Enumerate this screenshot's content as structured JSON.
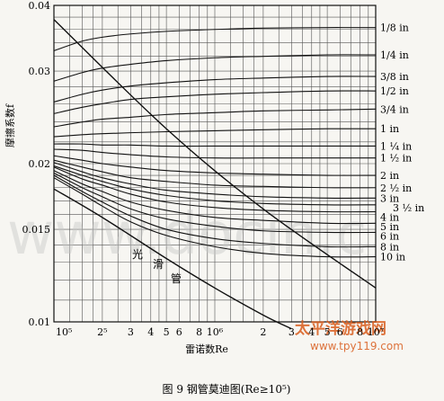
{
  "chart_data": {
    "type": "line",
    "title": "",
    "ylabel": "摩擦系数f",
    "xlabel": "雷诺数Re",
    "caption": "图 9   钢管莫迪图(Re≥10⁵)",
    "x_scale": "log",
    "y_scale": "log",
    "xlim": [
      100000,
      10000000
    ],
    "ylim": [
      0.01,
      0.04
    ],
    "grid": true,
    "y_ticks": [
      {
        "value": 0.04,
        "label": "0.04"
      },
      {
        "value": 0.03,
        "label": "0.03"
      },
      {
        "value": 0.02,
        "label": "0.02"
      },
      {
        "value": 0.015,
        "label": "0.015"
      },
      {
        "value": 0.01,
        "label": "0.01"
      }
    ],
    "x_ticks": [
      {
        "value": 100000,
        "label": "10⁵"
      },
      {
        "value": 200000,
        "label": "2⁵"
      },
      {
        "value": 300000,
        "label": "3"
      },
      {
        "value": 400000,
        "label": "4"
      },
      {
        "value": 500000,
        "label": "5"
      },
      {
        "value": 600000,
        "label": "6"
      },
      {
        "value": 800000,
        "label": "8"
      },
      {
        "value": 1000000,
        "label": "10⁶"
      },
      {
        "value": 2000000,
        "label": "2"
      },
      {
        "value": 3000000,
        "label": "3"
      },
      {
        "value": 4000000,
        "label": "4"
      },
      {
        "value": 5000000,
        "label": "5"
      },
      {
        "value": 6000000,
        "label": "6"
      },
      {
        "value": 8000000,
        "label": "8"
      },
      {
        "value": 10000000,
        "label": "10⁷"
      }
    ],
    "x_grid": [
      100000,
      125000,
      150000,
      175000,
      200000,
      250000,
      300000,
      350000,
      400000,
      450000,
      500000,
      600000,
      700000,
      800000,
      900000,
      1000000,
      1250000,
      1500000,
      1750000,
      2000000,
      2500000,
      3000000,
      3500000,
      4000000,
      4500000,
      5000000,
      6000000,
      7000000,
      8000000,
      9000000,
      10000000
    ],
    "y_grid": [
      0.01,
      0.011,
      0.012,
      0.013,
      0.014,
      0.015,
      0.016,
      0.017,
      0.018,
      0.019,
      0.02,
      0.022,
      0.024,
      0.026,
      0.028,
      0.03,
      0.032,
      0.034,
      0.036,
      0.038,
      0.04
    ],
    "series": [
      {
        "name": "1/8 in",
        "x": [
          100000,
          150000,
          200000,
          300000,
          500000,
          1000000,
          2000000,
          5000000,
          10000000
        ],
        "y": [
          0.0328,
          0.0342,
          0.0348,
          0.0353,
          0.0357,
          0.036,
          0.0362,
          0.0363,
          0.0363
        ]
      },
      {
        "name": "1/4 in",
        "x": [
          100000,
          150000,
          200000,
          300000,
          500000,
          1000000,
          2000000,
          5000000,
          10000000
        ],
        "y": [
          0.0287,
          0.0298,
          0.0304,
          0.0309,
          0.0314,
          0.0318,
          0.032,
          0.0322,
          0.0322
        ]
      },
      {
        "name": "3/8 in",
        "x": [
          100000,
          150000,
          200000,
          300000,
          500000,
          1000000,
          2000000,
          5000000,
          10000000
        ],
        "y": [
          0.0262,
          0.0271,
          0.0276,
          0.0281,
          0.0285,
          0.0289,
          0.0291,
          0.0293,
          0.0293
        ]
      },
      {
        "name": "1/2 in",
        "x": [
          100000,
          150000,
          200000,
          300000,
          500000,
          1000000,
          2000000,
          5000000,
          10000000
        ],
        "y": [
          0.0249,
          0.0256,
          0.026,
          0.0265,
          0.0268,
          0.0271,
          0.0273,
          0.0275,
          0.0275
        ]
      },
      {
        "name": "3/4 in",
        "x": [
          100000,
          150000,
          200000,
          300000,
          500000,
          1000000,
          2000000,
          5000000,
          10000000
        ],
        "y": [
          0.0235,
          0.024,
          0.0243,
          0.0245,
          0.0248,
          0.025,
          0.0252,
          0.0253,
          0.0254
        ]
      },
      {
        "name": "1 in",
        "x": [
          100000,
          150000,
          200000,
          300000,
          500000,
          1000000,
          2000000,
          5000000,
          10000000
        ],
        "y": [
          0.0225,
          0.0227,
          0.0228,
          0.0229,
          0.023,
          0.0231,
          0.0232,
          0.0233,
          0.0233
        ]
      },
      {
        "name": "1 ¼ in",
        "x": [
          100000,
          150000,
          200000,
          300000,
          500000,
          1000000,
          2000000,
          5000000,
          10000000
        ],
        "y": [
          0.0218,
          0.0218,
          0.0217,
          0.0217,
          0.0216,
          0.0216,
          0.0216,
          0.0216,
          0.0216
        ]
      },
      {
        "name": "1 ½ in",
        "x": [
          100000,
          150000,
          200000,
          300000,
          500000,
          1000000,
          2000000,
          5000000,
          10000000
        ],
        "y": [
          0.0213,
          0.0212,
          0.021,
          0.0208,
          0.0206,
          0.0205,
          0.0205,
          0.0205,
          0.0205
        ]
      },
      {
        "name": "2 in",
        "x": [
          100000,
          150000,
          200000,
          300000,
          500000,
          1000000,
          2000000,
          5000000,
          10000000
        ],
        "y": [
          0.0207,
          0.0203,
          0.02,
          0.0197,
          0.0194,
          0.0192,
          0.0191,
          0.019,
          0.019
        ]
      },
      {
        "name": "2 ½ in",
        "x": [
          100000,
          150000,
          200000,
          300000,
          500000,
          1000000,
          2000000,
          5000000,
          10000000
        ],
        "y": [
          0.0203,
          0.0197,
          0.0193,
          0.0188,
          0.0185,
          0.0182,
          0.0181,
          0.018,
          0.018
        ]
      },
      {
        "name": "3 in",
        "x": [
          100000,
          150000,
          200000,
          300000,
          500000,
          1000000,
          2000000,
          5000000,
          10000000
        ],
        "y": [
          0.0201,
          0.0193,
          0.0188,
          0.0183,
          0.0178,
          0.0175,
          0.0173,
          0.0172,
          0.0172
        ]
      },
      {
        "name": "3 ½ in",
        "x": [
          100000,
          150000,
          200000,
          300000,
          500000,
          1000000,
          2000000,
          5000000,
          10000000
        ],
        "y": [
          0.0198,
          0.019,
          0.0185,
          0.0179,
          0.0174,
          0.017,
          0.0168,
          0.0167,
          0.0167
        ]
      },
      {
        "name": "4 in",
        "x": [
          100000,
          150000,
          200000,
          300000,
          500000,
          1000000,
          2000000,
          5000000,
          10000000
        ],
        "y": [
          0.0197,
          0.0187,
          0.0182,
          0.0175,
          0.0169,
          0.0165,
          0.0163,
          0.0162,
          0.0162
        ]
      },
      {
        "name": "5 in",
        "x": [
          100000,
          150000,
          200000,
          300000,
          500000,
          1000000,
          2000000,
          5000000,
          10000000
        ],
        "y": [
          0.0194,
          0.0183,
          0.0177,
          0.0169,
          0.0163,
          0.0158,
          0.0156,
          0.0154,
          0.0154
        ]
      },
      {
        "name": "6 in",
        "x": [
          100000,
          150000,
          200000,
          300000,
          500000,
          1000000,
          2000000,
          5000000,
          10000000
        ],
        "y": [
          0.0192,
          0.018,
          0.0173,
          0.0164,
          0.0157,
          0.0152,
          0.0149,
          0.0148,
          0.0148
        ]
      },
      {
        "name": "8 in",
        "x": [
          100000,
          150000,
          200000,
          300000,
          500000,
          1000000,
          2000000,
          5000000,
          10000000
        ],
        "y": [
          0.019,
          0.0177,
          0.0169,
          0.0159,
          0.015,
          0.0144,
          0.0141,
          0.0139,
          0.0139
        ]
      },
      {
        "name": "10 in",
        "x": [
          100000,
          150000,
          200000,
          300000,
          500000,
          1000000,
          2000000,
          5000000,
          10000000
        ],
        "y": [
          0.0188,
          0.0175,
          0.0166,
          0.0155,
          0.0146,
          0.0139,
          0.0135,
          0.0133,
          0.0133
        ]
      }
    ],
    "smooth_pipe": {
      "label": "光滑管",
      "x": [
        100000,
        200000,
        500000,
        1000000,
        2000000,
        3000000
      ],
      "y": [
        0.0179,
        0.0158,
        0.0132,
        0.0116,
        0.0103,
        0.0097
      ]
    },
    "limit_line": {
      "x": [
        100000,
        500000,
        2000000,
        10000000
      ],
      "y": [
        0.0376,
        0.0233,
        0.0164,
        0.0116
      ]
    }
  },
  "watermark": {
    "text": "www.docin.c",
    "cn": "太平洋游戏网",
    "url": "www.tpy119.com"
  }
}
